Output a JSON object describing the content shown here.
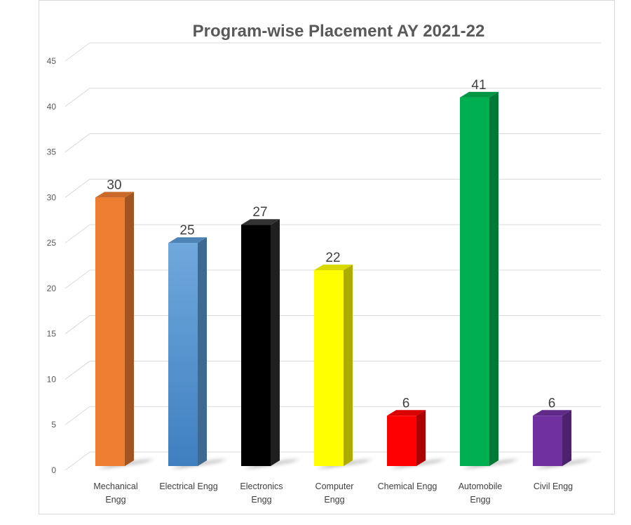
{
  "chart_data": {
    "type": "bar",
    "title": "Program-wise Placement AY 2021-22",
    "categories": [
      [
        "Mechanical",
        "Engg"
      ],
      [
        "Electrical Engg"
      ],
      [
        "Electronics",
        "Engg"
      ],
      [
        "Computer",
        "Engg"
      ],
      [
        "Chemical Engg"
      ],
      [
        "Automobile",
        "Engg"
      ],
      [
        "Civil Engg"
      ]
    ],
    "values": [
      30,
      25,
      27,
      22,
      6,
      41,
      6
    ],
    "colors": [
      "#ED7D31",
      "#5B9BD5",
      "#000000",
      "#FFFF00",
      "#FF0000",
      "#00B050",
      "#7030A0"
    ],
    "yticks": [
      0,
      5,
      10,
      15,
      20,
      25,
      30,
      35,
      40,
      45
    ],
    "ylim": [
      0,
      45
    ],
    "xlabel": "",
    "ylabel": "",
    "grid": true,
    "legend": "none",
    "style": "3d-bar",
    "data_labels": true
  }
}
